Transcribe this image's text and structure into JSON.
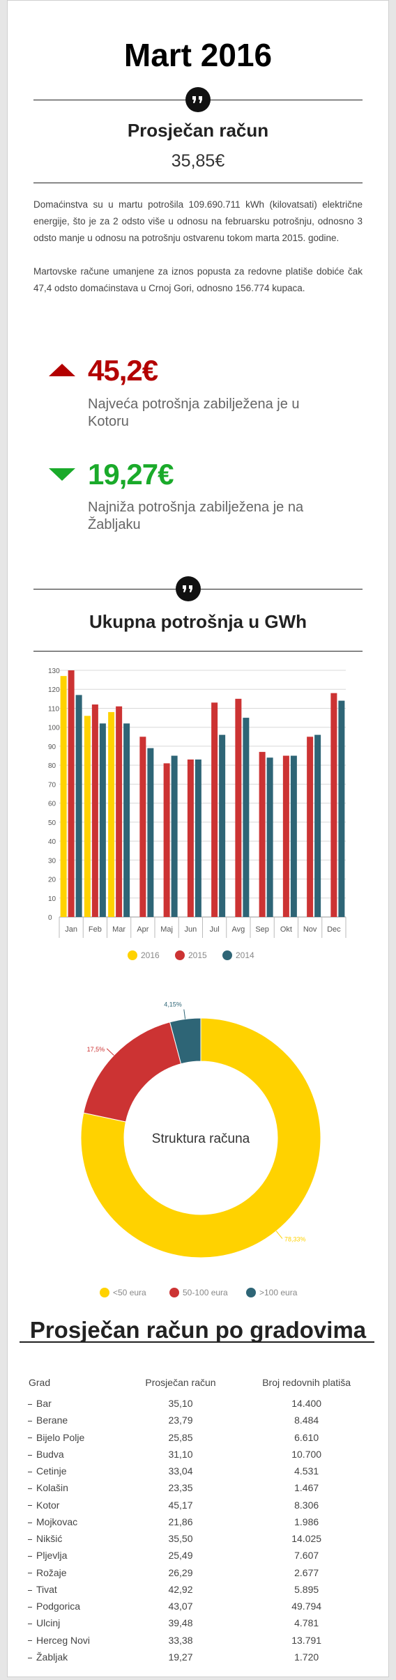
{
  "header": {
    "title": "Mart 2016",
    "subtitle": "Prosječan račun",
    "value": "35,85€"
  },
  "summary": [
    "Domaćinstva su u martu potrošila 109.690.711 kWh (kilovatsati) električne energije, što je za 2 odsto više u odnosu na februarsku potrošnju, odnosno 3 odsto manje u odnosu na potrošnju ostvarenu tokom marta 2015. godine.",
    "Martovske račune umanjene za iznos popusta za redovne platiše dobiće čak 47,4 odsto domaćinstava u Crnoj Gori, odnosno 156.774 kupaca."
  ],
  "highlights": [
    {
      "value": "45,2€",
      "text": "Najveća potrošnja zabilježena je u Kotoru"
    },
    {
      "value": "19,27€",
      "text": "Najniža potrošnja zabilježena je na Žabljaku"
    }
  ],
  "chart_data": [
    {
      "type": "bar",
      "title": "Ukupna potrošnja u GWh",
      "categories": [
        "Jan",
        "Feb",
        "Mar",
        "Apr",
        "Maj",
        "Jun",
        "Jul",
        "Avg",
        "Sep",
        "Okt",
        "Nov",
        "Dec"
      ],
      "series": [
        {
          "name": "2016",
          "color": "#ffd200",
          "values": [
            127,
            106,
            108,
            null,
            null,
            null,
            null,
            null,
            null,
            null,
            null,
            null
          ]
        },
        {
          "name": "2015",
          "color": "#cc3333",
          "values": [
            130,
            112,
            111,
            95,
            81,
            83,
            113,
            115,
            87,
            85,
            95,
            118
          ]
        },
        {
          "name": "2014",
          "color": "#2e6576",
          "values": [
            117,
            102,
            102,
            89,
            85,
            83,
            96,
            105,
            84,
            85,
            96,
            114
          ]
        }
      ],
      "ylim": [
        0,
        130
      ],
      "yticks": [
        0,
        10,
        20,
        30,
        40,
        50,
        60,
        70,
        80,
        90,
        100,
        110,
        120,
        130
      ],
      "grid": true,
      "legend": "bottom"
    },
    {
      "type": "pie",
      "title": "Struktura računa",
      "categories": [
        "<50 eura",
        "50-100 eura",
        ">100 eura"
      ],
      "values": [
        78.33,
        17.5,
        4.15
      ],
      "value_labels": [
        "78,33%",
        "17,5%",
        "4,15%"
      ],
      "colors": [
        "#ffd200",
        "#cc3333",
        "#2e6576"
      ],
      "donut": true,
      "legend": "bottom"
    }
  ],
  "table": {
    "title": "Prosječan račun po gradovima",
    "headers": [
      "Grad",
      "Prosječan račun",
      "Broj redovnih platiša"
    ],
    "rows": [
      [
        "Bar",
        "35,10",
        "14.400"
      ],
      [
        "Berane",
        "23,79",
        "8.484"
      ],
      [
        "Bijelo Polje",
        "25,85",
        "6.610"
      ],
      [
        "Budva",
        "31,10",
        "10.700"
      ],
      [
        "Cetinje",
        "33,04",
        "4.531"
      ],
      [
        "Kolašin",
        "23,35",
        "1.467"
      ],
      [
        "Kotor",
        "45,17",
        "8.306"
      ],
      [
        "Mojkovac",
        "21,86",
        "1.986"
      ],
      [
        "Nikšić",
        "35,50",
        "14.025"
      ],
      [
        "Pljevlja",
        "25,49",
        "7.607"
      ],
      [
        "Rožaje",
        "26,29",
        "2.677"
      ],
      [
        "Tivat",
        "42,92",
        "5.895"
      ],
      [
        "Podgorica",
        "43,07",
        "49.794"
      ],
      [
        "Ulcinj",
        "39,48",
        "4.781"
      ],
      [
        "Herceg Novi",
        "33,38",
        "13.791"
      ],
      [
        "Žabljak",
        "19,27",
        "1.720"
      ]
    ]
  }
}
